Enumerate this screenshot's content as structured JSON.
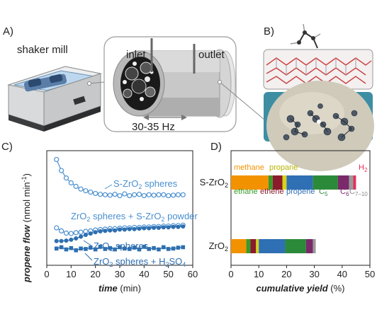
{
  "panels": {
    "a": {
      "label": "A)",
      "device_label": "shaker mill",
      "inlet_label": "inlet",
      "outlet_label": "outlet",
      "frequency_label": "30-35 Hz"
    },
    "b": {
      "label": "B)"
    },
    "c": {
      "label": "C)"
    },
    "d": {
      "label": "D)"
    }
  },
  "colors": {
    "line_dark": "#2e6fb0",
    "line_light": "#4a8fd0",
    "methane": "#f39200",
    "ethane": "#3a9a2a",
    "ethene": "#8a1c2b",
    "propane": "#d6d21a",
    "propene": "#2f6fb3",
    "c5": "#2b8a3a",
    "c6": "#7a2a6a",
    "c7_10": "#9a9a9a",
    "h2": "#e4305a"
  },
  "chart_data": [
    {
      "type": "line",
      "panel": "C",
      "xlabel": "time",
      "xlabel_unit": "(min)",
      "ylabel": "propene flow",
      "ylabel_unit": "(nmol min",
      "ylabel_sup": "-1",
      "ylabel_close": ")",
      "xlim": [
        0,
        60
      ],
      "ylim": [
        0,
        26
      ],
      "xticks": [
        "0",
        "10",
        "20",
        "30",
        "40",
        "50",
        "60"
      ],
      "series": [
        {
          "name": "S-ZrO2 spheres",
          "label_main": "S-ZrO",
          "label_sub": "2",
          "label_tail": " spheres",
          "marker": "open-circle",
          "color": "#4a8fd0",
          "x": [
            4,
            6,
            8,
            10,
            12,
            14,
            16,
            18,
            20,
            22,
            24,
            26,
            28,
            30,
            32,
            34,
            36,
            38,
            40,
            42,
            44,
            46,
            48,
            50,
            52,
            54,
            56
          ],
          "y": [
            24,
            21.5,
            19.8,
            18.7,
            17.9,
            17.3,
            16.9,
            16.6,
            16.3,
            16.1,
            16,
            15.9,
            16.1,
            15.8,
            16.2,
            15.8,
            16,
            16.1,
            15.8,
            16,
            15.9,
            16,
            16,
            15.8,
            15.9,
            16,
            16
          ]
        },
        {
          "name": "ZrO2 spheres + S-ZrO2 powder",
          "label_main": "ZrO",
          "label_sub": "2",
          "label_tail": " spheres + S-ZrO",
          "label_sub2": "2",
          "label_tail2": " powder",
          "marker": "open-circle",
          "color": "#4a8fd0",
          "x": [
            4,
            6,
            8,
            10,
            12,
            14,
            16,
            18,
            20,
            22,
            24,
            26,
            28,
            30,
            32,
            34,
            36,
            38,
            40,
            42,
            44,
            46,
            48,
            50,
            52,
            54,
            56
          ],
          "y": [
            8.5,
            7.8,
            7.3,
            7.2,
            7.4,
            7.5,
            7.7,
            7.8,
            8,
            8.1,
            8.2,
            8.3,
            8.3,
            8.4,
            8.5,
            8.5,
            8.6,
            8.6,
            8.7,
            8.7,
            8.8,
            8.8,
            8.9,
            8.9,
            9,
            9,
            9.1
          ]
        },
        {
          "name": "ZrO2 spheres",
          "label_main": "ZrO",
          "label_sub": "2",
          "label_tail": " spheres",
          "marker": "filled-circle",
          "color": "#2e6fb0",
          "x": [
            4,
            6,
            8,
            10,
            12,
            14,
            16,
            18,
            20,
            22,
            24,
            26,
            28,
            30,
            32,
            34,
            36,
            38,
            40,
            42,
            44,
            46,
            48,
            50,
            52,
            54,
            56
          ],
          "y": [
            5.5,
            5.5,
            5.6,
            5.8,
            6.1,
            6.5,
            6.9,
            7.2,
            7.5,
            7.7,
            7.8,
            7.9,
            7.9,
            8.1,
            8.1,
            8.2,
            8.2,
            8.3,
            8.4,
            8.4,
            8.5,
            8.5,
            8.6,
            8.6,
            8.7,
            8.7,
            8.8
          ]
        },
        {
          "name": "ZrO2 spheres + H2SO4",
          "label_main": "ZrO",
          "label_sub": "2",
          "label_tail": " spheres + H",
          "label_sub2": "2",
          "label_tail2": "SO",
          "label_sub3": "4",
          "marker": "filled-square",
          "color": "#2e6fb0",
          "x": [
            4,
            6,
            8,
            10,
            12,
            14,
            16,
            18,
            20,
            22,
            24,
            26,
            28,
            30,
            32,
            34,
            36,
            38,
            40,
            42,
            44,
            46,
            48,
            50,
            52,
            54,
            56
          ],
          "y": [
            3.8,
            4.1,
            3.6,
            3.9,
            3.4,
            3.8,
            3.7,
            4,
            3.6,
            4.2,
            3.7,
            3.9,
            3.6,
            4.1,
            3.8,
            3.7,
            4,
            3.6,
            4.2,
            3.7,
            3.9,
            3.6,
            4.1,
            3.7,
            3.8,
            4,
            4.1
          ]
        }
      ]
    },
    {
      "type": "bar",
      "orientation": "horizontal",
      "stacked": true,
      "panel": "D",
      "xlabel": "cumulative yield",
      "xlabel_unit": "(%)",
      "xlim": [
        0,
        50
      ],
      "xticks": [
        "0",
        "10",
        "20",
        "30",
        "40",
        "50"
      ],
      "categories": [
        {
          "main": "S-ZrO",
          "sub": "2"
        },
        {
          "main": "ZrO",
          "sub": "2"
        }
      ],
      "segments": [
        "methane",
        "ethane",
        "ethene",
        "propane",
        "propene",
        "C5",
        "C6",
        "C7–10",
        "H2"
      ],
      "values": [
        [
          13.5,
          1.5,
          3.5,
          1.5,
          9.5,
          9.0,
          4.0,
          1.5,
          1.0
        ],
        [
          5.5,
          1.5,
          2.0,
          1.0,
          9.5,
          7.5,
          2.5,
          1.0,
          0.0
        ]
      ],
      "segment_labels": {
        "methane": "methane",
        "ethane": "ethane",
        "ethene": "ethene",
        "propane": "propane",
        "propene": "propene",
        "c5_main": "C",
        "c5_sub": "5",
        "c6_main": "C",
        "c6_sub": "6",
        "c7_main": "C",
        "c7_sub": "7–10",
        "h2_main": "H",
        "h2_sub": "2"
      }
    }
  ]
}
